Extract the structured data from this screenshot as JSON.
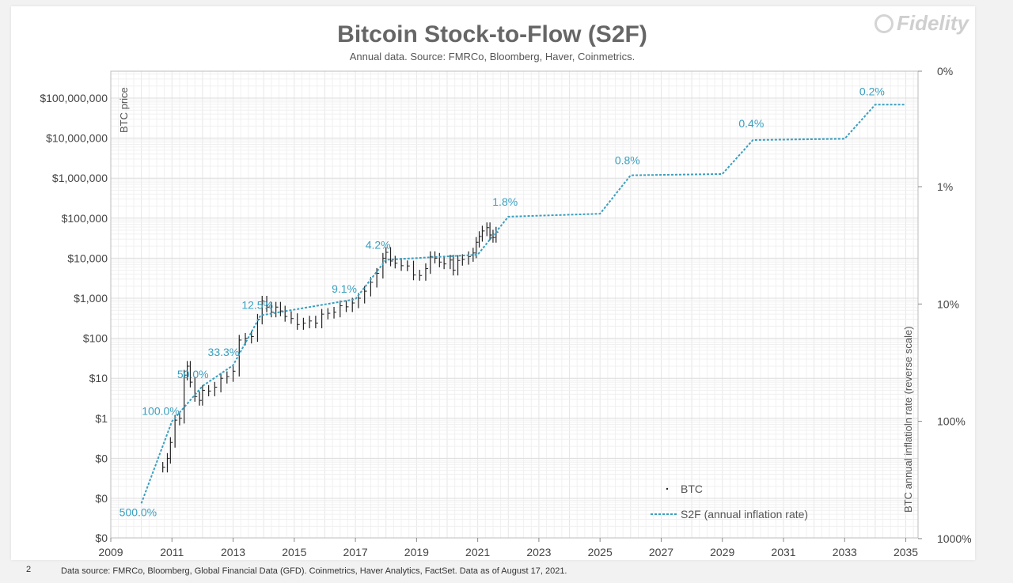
{
  "logo_text": "Fidelity",
  "page_number": "2",
  "footnote": "Data source: FMRCo, Bloomberg, Global Financial Data (GFD). Coinmetrics, Haver Analytics, FactSet.  Data as of August 17, 2021.",
  "colors": {
    "s2f": "#3a9fbf",
    "btc": "#222222",
    "grid": "#e6e6e6",
    "title": "#666666"
  },
  "chart_data": {
    "type": "line",
    "title": "Bitcoin Stock-to-Flow (S2F)",
    "subtitle": "Annual data.  Source: FMRCo, Bloomberg, Haver, Coinmetrics.",
    "ylabel": "BTC price",
    "y2label": "BTC annual inflatioln rate (reverse scale)",
    "grid": true,
    "legend_position": "bottom-right",
    "x_ticks": [
      "2009",
      "2011",
      "2013",
      "2015",
      "2017",
      "2019",
      "2021",
      "2023",
      "2025",
      "2027",
      "2029",
      "2031",
      "2033",
      "2035"
    ],
    "xlim": [
      2009,
      2035.4
    ],
    "y_ticks": [
      "$0",
      "$0",
      "$0",
      "$1",
      "$10",
      "$100",
      "$1,000",
      "$10,000",
      "$100,000",
      "$1,000,000",
      "$10,000,000",
      "$100,000,000"
    ],
    "y2_ticks": [
      "1000%",
      "100%",
      "10%",
      "1%",
      "0%"
    ],
    "y2_scale": "log-reverse",
    "series": [
      {
        "name": "BTC",
        "kind": "price-bars",
        "points": [
          [
            2010.7,
            0.06
          ],
          [
            2010.85,
            0.1
          ],
          [
            2010.95,
            0.25
          ],
          [
            2011.1,
            0.9
          ],
          [
            2011.25,
            1.0
          ],
          [
            2011.4,
            12
          ],
          [
            2011.5,
            20
          ],
          [
            2011.6,
            8
          ],
          [
            2011.75,
            3.5
          ],
          [
            2011.9,
            2.8
          ],
          [
            2012.0,
            5
          ],
          [
            2012.2,
            4.8
          ],
          [
            2012.4,
            6
          ],
          [
            2012.6,
            10
          ],
          [
            2012.8,
            11
          ],
          [
            2013.0,
            15
          ],
          [
            2013.2,
            90
          ],
          [
            2013.4,
            100
          ],
          [
            2013.6,
            110
          ],
          [
            2013.8,
            300
          ],
          [
            2013.95,
            850
          ],
          [
            2014.1,
            600
          ],
          [
            2014.25,
            450
          ],
          [
            2014.4,
            600
          ],
          [
            2014.55,
            480
          ],
          [
            2014.7,
            350
          ],
          [
            2014.9,
            310
          ],
          [
            2015.1,
            220
          ],
          [
            2015.3,
            240
          ],
          [
            2015.5,
            270
          ],
          [
            2015.7,
            240
          ],
          [
            2015.9,
            400
          ],
          [
            2016.1,
            420
          ],
          [
            2016.3,
            450
          ],
          [
            2016.5,
            650
          ],
          [
            2016.7,
            610
          ],
          [
            2016.9,
            760
          ],
          [
            2017.1,
            1000
          ],
          [
            2017.3,
            1500
          ],
          [
            2017.5,
            2500
          ],
          [
            2017.7,
            4200
          ],
          [
            2017.9,
            10000
          ],
          [
            2018.0,
            14000
          ],
          [
            2018.15,
            8500
          ],
          [
            2018.3,
            7500
          ],
          [
            2018.5,
            6500
          ],
          [
            2018.7,
            6400
          ],
          [
            2018.9,
            3800
          ],
          [
            2019.1,
            3700
          ],
          [
            2019.3,
            5500
          ],
          [
            2019.45,
            11000
          ],
          [
            2019.6,
            10000
          ],
          [
            2019.75,
            8000
          ],
          [
            2019.9,
            7200
          ],
          [
            2020.1,
            9000
          ],
          [
            2020.2,
            5000
          ],
          [
            2020.35,
            8800
          ],
          [
            2020.5,
            9300
          ],
          [
            2020.7,
            11000
          ],
          [
            2020.85,
            13500
          ],
          [
            2020.95,
            25000
          ],
          [
            2021.05,
            35000
          ],
          [
            2021.15,
            48000
          ],
          [
            2021.3,
            58000
          ],
          [
            2021.4,
            38000
          ],
          [
            2021.5,
            33000
          ],
          [
            2021.6,
            45000
          ]
        ]
      },
      {
        "name": "S2F (annual inflation rate)",
        "kind": "stepped-dashed",
        "points": [
          [
            2010.0,
            500.0
          ],
          [
            2011.0,
            100.0
          ],
          [
            2012.0,
            50.0
          ],
          [
            2013.0,
            33.3
          ],
          [
            2013.9,
            12.5
          ],
          [
            2017.0,
            9.1
          ],
          [
            2018.0,
            4.2
          ],
          [
            2021.0,
            3.8
          ],
          [
            2022.0,
            1.8
          ],
          [
            2025.0,
            1.7
          ],
          [
            2026.0,
            0.8
          ],
          [
            2029.0,
            0.78
          ],
          [
            2030.0,
            0.4
          ],
          [
            2033.0,
            0.39
          ],
          [
            2034.0,
            0.2
          ],
          [
            2035.0,
            0.2
          ]
        ],
        "labels": [
          {
            "text": "500.0%",
            "x": 2010.0,
            "y": 500.0
          },
          {
            "text": "100.0%",
            "x": 2011.0,
            "y": 100.0
          },
          {
            "text": "50.0%",
            "x": 2012.0,
            "y": 50.0
          },
          {
            "text": "33.3%",
            "x": 2013.0,
            "y": 33.3
          },
          {
            "text": "12.5%",
            "x": 2013.9,
            "y": 12.5
          },
          {
            "text": "9.1%",
            "x": 2017.0,
            "y": 9.1
          },
          {
            "text": "4.2%",
            "x": 2018.0,
            "y": 4.2
          },
          {
            "text": "1.8%",
            "x": 2022.0,
            "y": 1.8
          },
          {
            "text": "0.8%",
            "x": 2026.0,
            "y": 0.8
          },
          {
            "text": "0.4%",
            "x": 2030.0,
            "y": 0.4
          },
          {
            "text": "0.2%",
            "x": 2034.0,
            "y": 0.2
          }
        ]
      }
    ]
  }
}
